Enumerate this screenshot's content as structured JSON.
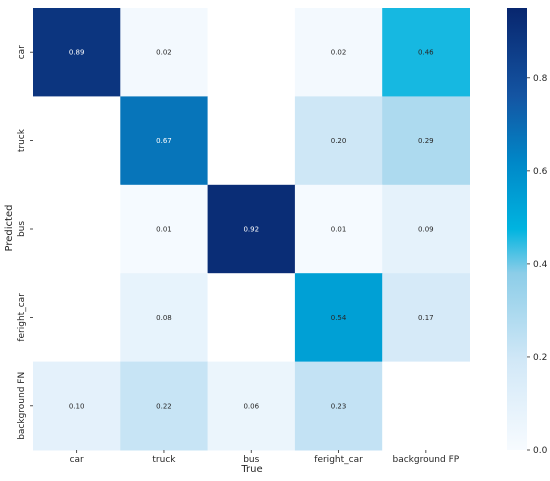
{
  "chart_data": {
    "type": "heatmap",
    "title": "",
    "xlabel": "True",
    "ylabel": "Predicted",
    "x_categories": [
      "car",
      "truck",
      "bus",
      "feright_car",
      "background FP"
    ],
    "y_categories": [
      "car",
      "truck",
      "bus",
      "feright_car",
      "background FN"
    ],
    "values": [
      [
        0.89,
        0.02,
        0.0,
        0.02,
        0.46
      ],
      [
        0.0,
        0.67,
        0.0,
        0.2,
        0.29
      ],
      [
        0.0,
        0.01,
        0.92,
        0.01,
        0.09
      ],
      [
        0.0,
        0.08,
        0.0,
        0.54,
        0.17
      ],
      [
        0.1,
        0.22,
        0.06,
        0.23,
        0.0
      ]
    ],
    "value_format": "0.00",
    "hide_values_below": 0.005,
    "colormap": "Blues",
    "colorbar": {
      "range": [
        0.0,
        0.95
      ],
      "ticks": [
        "0.0",
        "0.2",
        "0.4",
        "0.6",
        "0.8"
      ]
    }
  }
}
